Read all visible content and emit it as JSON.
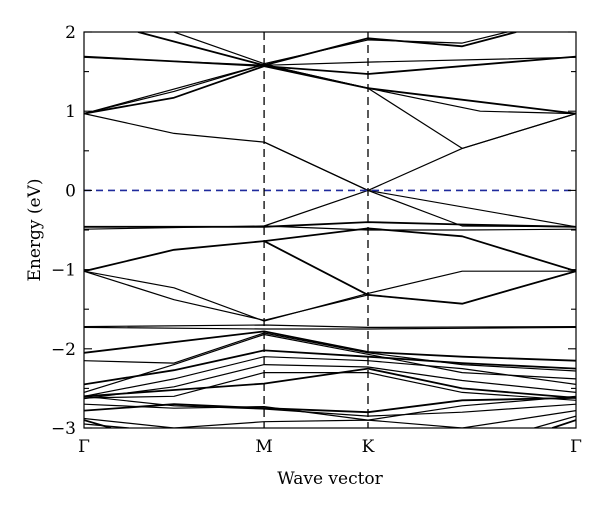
{
  "chart_data": {
    "type": "line",
    "title": "",
    "xlabel": "Wave vector",
    "ylabel": "Energy (eV)",
    "x_points": [
      {
        "label": "Γ",
        "pos": 0.0
      },
      {
        "label": "M",
        "pos": 1.0
      },
      {
        "label": "K",
        "pos": 1.577
      },
      {
        "label": "Γ",
        "pos": 2.732
      }
    ],
    "xlim": [
      0,
      2.732
    ],
    "ylim": [
      -3,
      2
    ],
    "yticks": [
      -3,
      -2,
      -1,
      0,
      1,
      2
    ],
    "fermi_level": {
      "y": 0,
      "color": "#1f2a9c",
      "style": "dashed"
    },
    "vertical_markers": [
      1.0,
      1.577
    ],
    "line_color": "#000000",
    "series": [
      {
        "x": [
          0,
          1,
          1.577,
          2.732
        ],
        "y": [
          1.69,
          1.57,
          1.47,
          1.69
        ]
      },
      {
        "x": [
          0,
          1,
          1.577,
          2.732
        ],
        "y": [
          1.68,
          1.58,
          1.62,
          1.68
        ]
      },
      {
        "x": [
          0,
          0.5,
          1,
          1.577,
          2.732
        ],
        "y": [
          0.97,
          0.72,
          0.61,
          0.0,
          -0.46
        ]
      },
      {
        "x": [
          0,
          0.5,
          1,
          1.577,
          2.732
        ],
        "y": [
          0.97,
          1.17,
          1.57,
          1.29,
          0.97
        ]
      },
      {
        "x": [
          0,
          0.5,
          1,
          1.577,
          2.2,
          2.732
        ],
        "y": [
          0.97,
          1.25,
          1.59,
          1.29,
          1.0,
          0.97
        ]
      },
      {
        "x": [
          0,
          1,
          1.577,
          2.1,
          2.732
        ],
        "y": [
          0.97,
          1.59,
          1.29,
          0.53,
          0.97
        ]
      },
      {
        "x": [
          0.3,
          1,
          1.577,
          2.1,
          2.4
        ],
        "y": [
          2.0,
          1.58,
          1.92,
          1.82,
          2.0
        ]
      },
      {
        "x": [
          0.5,
          1,
          1.577,
          2.1,
          2.35
        ],
        "y": [
          2.0,
          1.6,
          1.9,
          1.86,
          2.0
        ]
      },
      {
        "x": [
          1,
          1.577,
          2.1,
          2.732
        ],
        "y": [
          0.61,
          0.0,
          -0.45,
          -0.46
        ]
      },
      {
        "x": [
          0,
          1,
          1.577,
          2.1,
          2.732
        ],
        "y": [
          -0.46,
          -0.46,
          -0.4,
          -0.43,
          -0.46
        ]
      },
      {
        "x": [
          0,
          1,
          1.577,
          2.1,
          2.732
        ],
        "y": [
          -0.49,
          -0.45,
          -0.5,
          -0.5,
          -0.49
        ]
      },
      {
        "x": [
          1,
          1.577,
          2.1,
          2.732
        ],
        "y": [
          -0.45,
          0.0,
          0.53,
          0.97
        ]
      },
      {
        "x": [
          0,
          0.5,
          1,
          1.577,
          2.1,
          2.732
        ],
        "y": [
          -1.02,
          -0.75,
          -0.64,
          -0.48,
          -0.58,
          -1.02
        ]
      },
      {
        "x": [
          0,
          0.5,
          1,
          1.577,
          2.1,
          2.732
        ],
        "y": [
          -1.02,
          -1.23,
          -1.65,
          -1.3,
          -1.02,
          -1.02
        ]
      },
      {
        "x": [
          0,
          0.5,
          1,
          1.577,
          2.1,
          2.732
        ],
        "y": [
          -1.02,
          -1.38,
          -1.64,
          -1.32,
          -1.43,
          -1.02
        ]
      },
      {
        "x": [
          1,
          1.577,
          2.1,
          2.732
        ],
        "y": [
          -0.64,
          -1.32,
          -1.43,
          -1.02
        ]
      },
      {
        "x": [
          0,
          1,
          1.577,
          2.732
        ],
        "y": [
          -1.72,
          -1.7,
          -1.73,
          -1.72
        ]
      },
      {
        "x": [
          0,
          1,
          1.577,
          2.732
        ],
        "y": [
          -1.73,
          -1.75,
          -1.75,
          -1.73
        ]
      },
      {
        "x": [
          0,
          1,
          1.577,
          2.1,
          2.732
        ],
        "y": [
          -2.05,
          -1.78,
          -2.04,
          -2.1,
          -2.15
        ]
      },
      {
        "x": [
          0,
          0.5,
          1,
          1.577,
          2.1,
          2.732
        ],
        "y": [
          -2.15,
          -2.18,
          -1.8,
          -2.05,
          -2.2,
          -2.28
        ]
      },
      {
        "x": [
          0,
          0.5,
          1,
          1.577,
          2.1,
          2.732
        ],
        "y": [
          -2.55,
          -2.2,
          -1.82,
          -2.07,
          -2.3,
          -2.38
        ]
      },
      {
        "x": [
          0,
          0.5,
          1,
          1.577,
          2.1,
          2.732
        ],
        "y": [
          -2.45,
          -2.27,
          -2.02,
          -2.1,
          -2.18,
          -2.25
        ]
      },
      {
        "x": [
          0,
          0.5,
          1,
          1.577,
          2.1,
          2.732
        ],
        "y": [
          -2.6,
          -2.38,
          -2.1,
          -2.15,
          -2.25,
          -2.45
        ]
      },
      {
        "x": [
          0,
          0.5,
          1,
          1.577,
          2.1,
          2.732
        ],
        "y": [
          -2.63,
          -2.48,
          -2.2,
          -2.23,
          -2.4,
          -2.55
        ]
      },
      {
        "x": [
          0,
          0.5,
          1,
          1.577,
          2.1,
          2.732
        ],
        "y": [
          -2.6,
          -2.52,
          -2.44,
          -2.25,
          -2.5,
          -2.62
        ]
      },
      {
        "x": [
          0,
          0.5,
          1,
          1.577,
          2.1,
          2.732
        ],
        "y": [
          -2.62,
          -2.6,
          -2.3,
          -2.3,
          -2.55,
          -2.65
        ]
      },
      {
        "x": [
          0,
          0.5,
          1,
          1.577,
          2.1,
          2.732
        ],
        "y": [
          -2.7,
          -2.75,
          -2.73,
          -2.9,
          -2.72,
          -2.6
        ]
      },
      {
        "x": [
          0,
          0.5,
          1,
          1.577,
          2.1,
          2.732
        ],
        "y": [
          -2.78,
          -2.7,
          -2.75,
          -2.8,
          -2.65,
          -2.62
        ]
      },
      {
        "x": [
          0,
          0.5,
          1,
          1.577,
          2.1,
          2.732
        ],
        "y": [
          -2.6,
          -2.72,
          -2.76,
          -2.85,
          -2.8,
          -2.7
        ]
      },
      {
        "x": [
          0,
          0.5,
          1,
          1.577,
          2.1,
          2.732
        ],
        "y": [
          -2.88,
          -3.0,
          -2.92,
          -2.9,
          -3.0,
          -2.78
        ]
      },
      {
        "x": [
          0,
          0.15
        ],
        "y": [
          -2.9,
          -3.0
        ]
      },
      {
        "x": [
          0,
          0.25
        ],
        "y": [
          -2.95,
          -3.0
        ]
      },
      {
        "x": [
          2.5,
          2.732
        ],
        "y": [
          -3.0,
          -2.85
        ]
      },
      {
        "x": [
          2.6,
          2.732
        ],
        "y": [
          -3.0,
          -2.9
        ]
      }
    ]
  }
}
